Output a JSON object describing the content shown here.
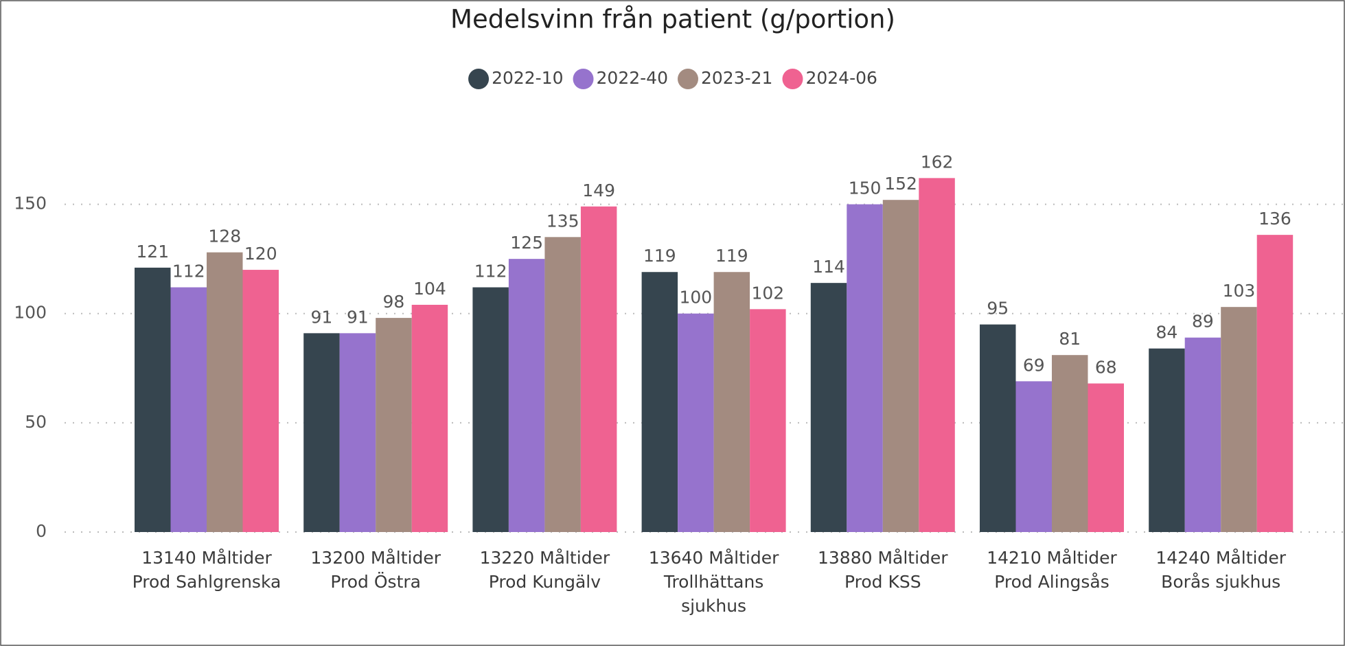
{
  "chart_data": {
    "type": "bar",
    "title": "Medelsvinn från patient (g/portion)",
    "categories": [
      "13140 Måltider Prod Sahlgrenska",
      "13200 Måltider Prod Östra",
      "13220 Måltider Prod Kungälv",
      "13640 Måltider Trollhättans sjukhus",
      "13880 Måltider Prod KSS",
      "14210 Måltider Prod Alingsås",
      "14240 Måltider Borås sjukhus"
    ],
    "series": [
      {
        "name": "2022-10",
        "color": "#36454f",
        "values": [
          121,
          91,
          112,
          119,
          114,
          95,
          84
        ]
      },
      {
        "name": "2022-40",
        "color": "#9673cd",
        "values": [
          112,
          91,
          125,
          100,
          150,
          69,
          89
        ]
      },
      {
        "name": "2023-21",
        "color": "#a38b80",
        "values": [
          128,
          98,
          135,
          119,
          152,
          81,
          103
        ]
      },
      {
        "name": "2024-06",
        "color": "#ef6291",
        "values": [
          120,
          104,
          149,
          102,
          162,
          68,
          136
        ]
      }
    ],
    "ylim": [
      0,
      175
    ],
    "yticks": [
      0,
      50,
      100,
      150
    ],
    "grid": true,
    "legend": "top"
  }
}
